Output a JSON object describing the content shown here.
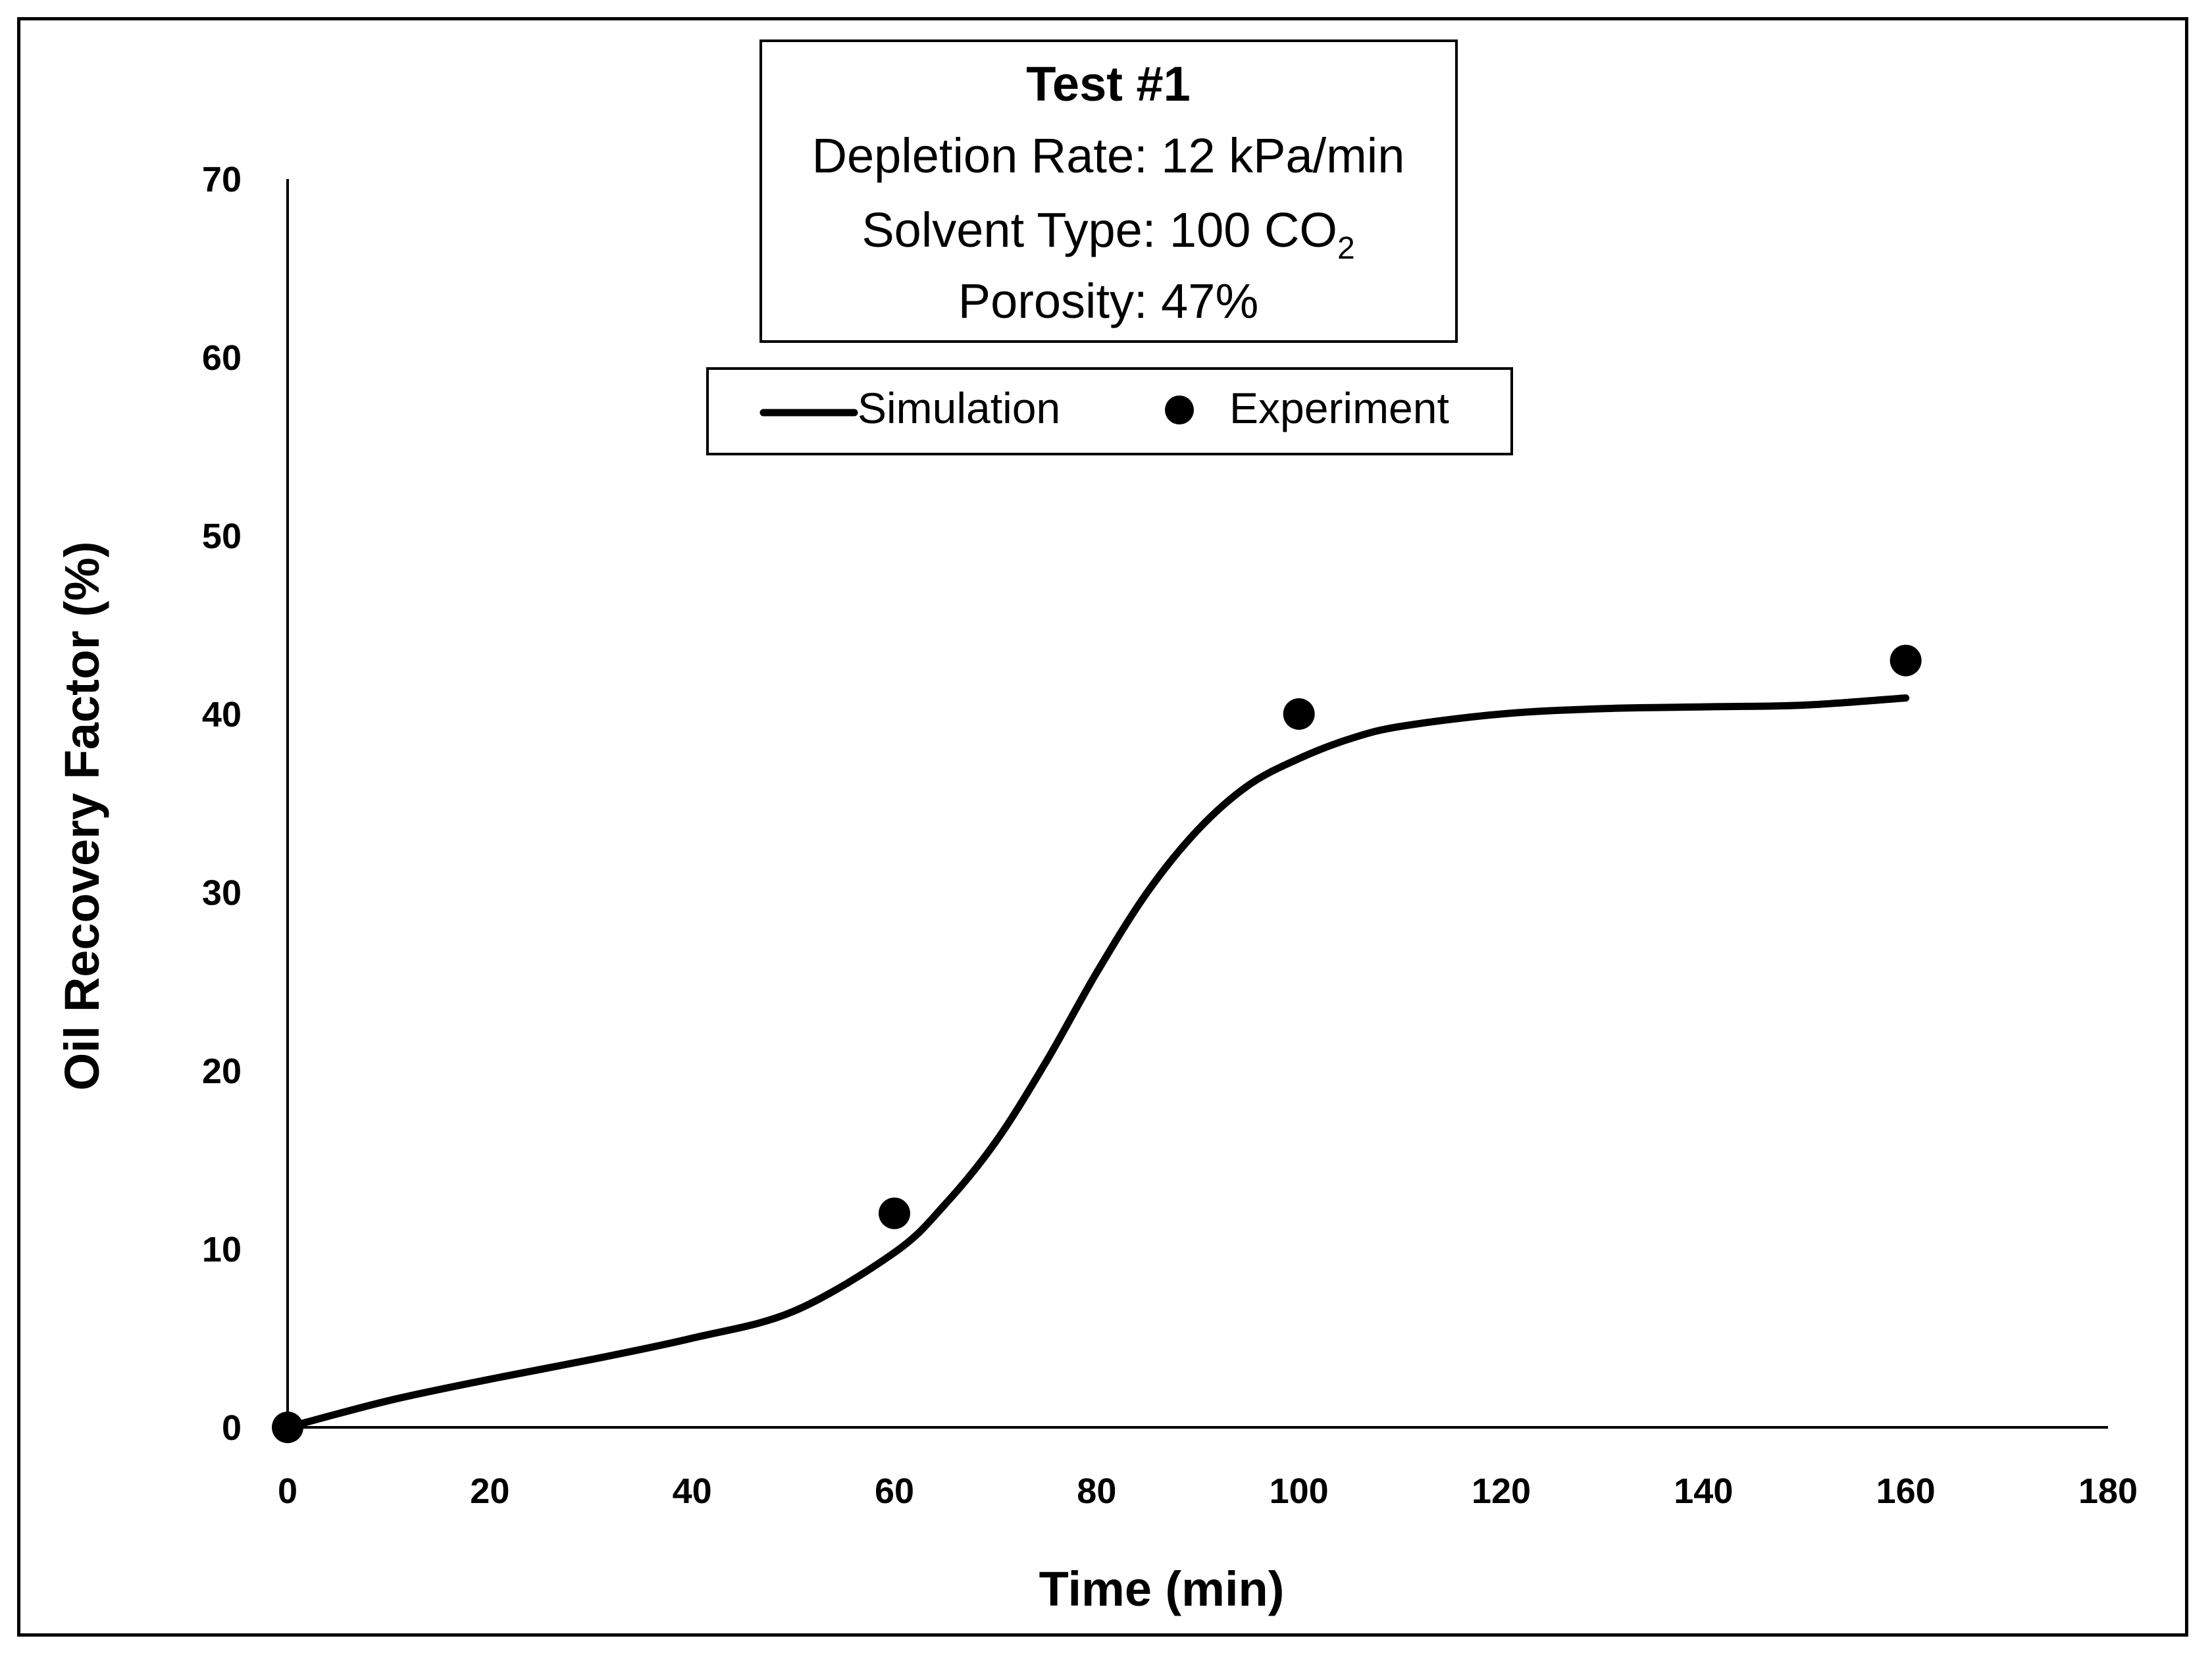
{
  "chart_data": {
    "type": "line",
    "title": "",
    "xlabel": "Time (min)",
    "ylabel": "Oil Recovery Factor (%)",
    "xlim": [
      0,
      180
    ],
    "ylim": [
      0,
      70
    ],
    "xticks": [
      0,
      20,
      40,
      60,
      80,
      100,
      120,
      140,
      160,
      180
    ],
    "yticks": [
      0,
      10,
      20,
      30,
      40,
      50,
      60,
      70
    ],
    "grid": false,
    "legend_position": "top-center",
    "info_box": {
      "title": "Test #1",
      "depletion_rate": "Depletion Rate: 12 kPa/min",
      "solvent_type_main": "Solvent Type: 100 CO",
      "solvent_type_sub": "2",
      "porosity": "Porosity: 47%"
    },
    "series": [
      {
        "name": "Simulation",
        "style": "line",
        "color": "#000000",
        "x": [
          0,
          10,
          20,
          30,
          40,
          50,
          60,
          65,
          70,
          75,
          80,
          85,
          90,
          95,
          100,
          105,
          110,
          120,
          130,
          140,
          150,
          160
        ],
        "y": [
          0,
          1.5,
          2.7,
          3.8,
          5.0,
          6.5,
          9.8,
          12.5,
          16.0,
          20.5,
          25.5,
          30.0,
          33.5,
          36.0,
          37.5,
          38.6,
          39.3,
          40.0,
          40.3,
          40.4,
          40.5,
          40.9
        ]
      },
      {
        "name": "Experiment",
        "style": "marker",
        "color": "#000000",
        "x": [
          0,
          60,
          100,
          160
        ],
        "y": [
          0,
          12,
          40,
          43
        ]
      }
    ]
  }
}
